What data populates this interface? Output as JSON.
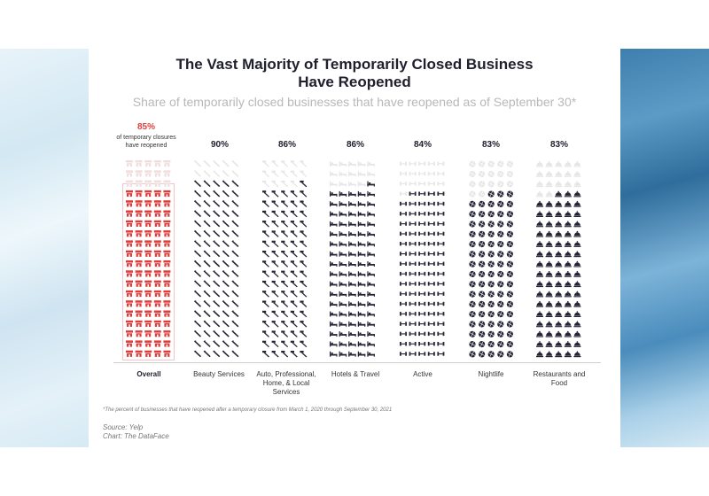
{
  "title_line1": "The Vast Majority of Temporarily Closed Business",
  "title_line2": "Have Reopened",
  "subtitle": "Share of temporarily closed businesses that have reopened as of September 30*",
  "overall_note_line1": "of temporary closures",
  "overall_note_line2": "have reopened",
  "footnote": "*The percent of businesses that have reopened after a temporary closure from March 1, 2020 through September 30, 2021",
  "source": "Source: Yelp",
  "credit": "Chart: The DataFace",
  "colors": {
    "highlight": "#e03c3c",
    "filled": "#252536",
    "empty": "#e6e6e6",
    "highlight_empty": "#f0dede"
  },
  "chart_data": {
    "type": "waffle",
    "icons_per_column": 100,
    "grid": "5 wide x 20 tall",
    "categories": [
      {
        "label": "Overall",
        "pct_label": "85%",
        "value": 85,
        "icon": "storefront-icon"
      },
      {
        "label": "Beauty Services",
        "pct_label": "90%",
        "value": 90,
        "icon": "comb-icon"
      },
      {
        "label_lines": [
          "Auto, Professional,",
          "Home, & Local",
          "Services"
        ],
        "pct_label": "86%",
        "value": 86,
        "icon": "hammer-icon"
      },
      {
        "label": "Hotels & Travel",
        "pct_label": "86%",
        "value": 86,
        "icon": "bed-icon"
      },
      {
        "label": "Active",
        "pct_label": "84%",
        "value": 84,
        "icon": "dumbbell-icon"
      },
      {
        "label": "Nightlife",
        "pct_label": "83%",
        "value": 83,
        "icon": "disco-ball-icon"
      },
      {
        "label_lines": [
          "Restaurants and",
          "Food"
        ],
        "pct_label": "83%",
        "value": 83,
        "icon": "cloche-icon"
      }
    ]
  }
}
